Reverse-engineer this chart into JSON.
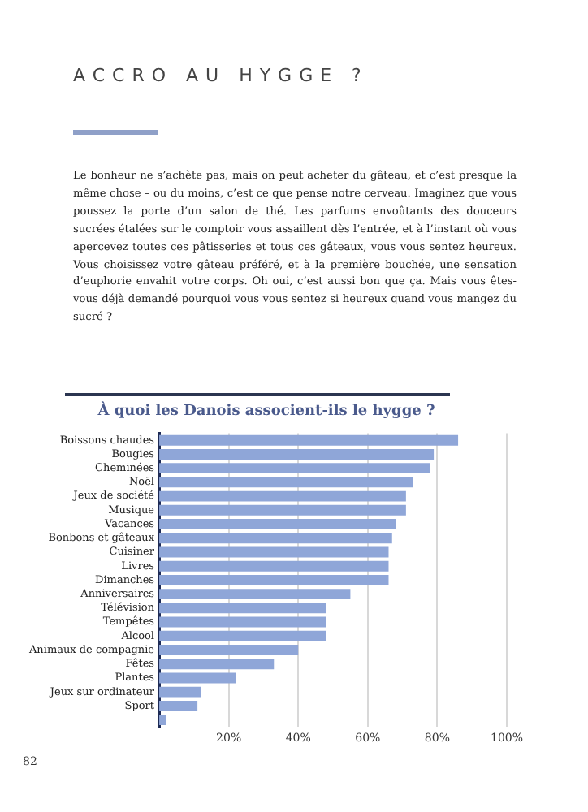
{
  "chart_data": {
    "type": "bar",
    "orientation": "horizontal",
    "title": "À quoi les Danois associent-ils le hygge ?",
    "categories": [
      "Boissons chaudes",
      "Bougies",
      "Cheminées",
      "Noël",
      "Jeux de société",
      "Musique",
      "Vacances",
      "Bonbons et gâteaux",
      "Cuisiner",
      "Livres",
      "Dimanches",
      "Anniversaires",
      "Télévision",
      "Tempêtes",
      "Alcool",
      "Animaux de compagnie",
      "Fêtes",
      "Plantes",
      "Jeux sur ordinateur",
      "Sport",
      null
    ],
    "values": [
      86,
      79,
      78,
      73,
      71,
      71,
      68,
      67,
      66,
      66,
      66,
      55,
      48,
      48,
      48,
      40,
      33,
      22,
      12,
      11,
      2
    ],
    "color": "#8fa6d8",
    "xlim": [
      0,
      100
    ],
    "xticks": [
      {
        "value": 0,
        "label": null
      },
      {
        "value": 20,
        "label": "20%"
      },
      {
        "value": 40,
        "label": "40%"
      },
      {
        "value": 60,
        "label": "60%"
      },
      {
        "value": 80,
        "label": "80%"
      },
      {
        "value": 100,
        "label": "100%"
      }
    ],
    "grid": "x",
    "legend": false,
    "annotations": [
      "ACCRO AU HYGGE ?",
      "Le bonheur ne s’achète pas, mais on peut acheter du gâteau, et c’est presque la même chose – ou du moins, c’est ce que pense notre cerveau. Imaginez que vous poussez la porte d’un salon de thé. Les parfums envoûtants des douceurs sucrées étalées sur le comptoir vous assaillent dès l’entrée, et à l’instant où vous apercevez toutes ces pâtisseries et tous ces gâteaux, vous vous sentez heureux. Vous choisissez votre gâteau préféré, et à la première bouchée, une sensation d’euphorie envahit votre corps. Oh oui, c’est aussi bon que ça. Mais vous êtes-vous déjà demandé pourquoi vous vous sentez si heureux quand vous mangez du sucré ?",
      "82"
    ]
  }
}
